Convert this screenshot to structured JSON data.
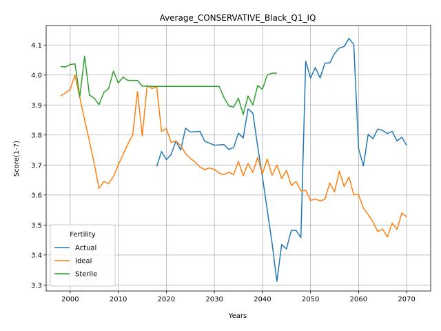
{
  "chart_data": {
    "type": "line",
    "title": "Average_CONSERVATIVE_Black_Q1_IQ",
    "xlabel": "Years",
    "ylabel": "Score(1-7)",
    "xlim": [
      1995,
      2075
    ],
    "ylim": [
      3.28,
      4.165
    ],
    "xticks": [
      2000,
      2010,
      2020,
      2030,
      2040,
      2050,
      2060,
      2070
    ],
    "yticks": [
      3.3,
      3.4,
      3.5,
      3.6,
      3.7,
      3.8,
      3.9,
      4.0,
      4.1
    ],
    "grid": true,
    "legend": {
      "title": "Fertility",
      "placement": "lower-left"
    },
    "series": [
      {
        "name": "Actual",
        "color": "#1f77b4",
        "x": [
          2018,
          2019,
          2020,
          2021,
          2022,
          2023,
          2024,
          2025,
          2026,
          2027,
          2028,
          2029,
          2030,
          2031,
          2032,
          2033,
          2034,
          2035,
          2036,
          2037,
          2038,
          2039,
          2040,
          2041,
          2042,
          2043,
          2044,
          2045,
          2046,
          2047,
          2048,
          2049,
          2050,
          2051,
          2052,
          2053,
          2054,
          2055,
          2056,
          2057,
          2058,
          2059,
          2060,
          2061,
          2062,
          2063,
          2064,
          2065,
          2066,
          2067,
          2068,
          2069,
          2070
        ],
        "y": [
          3.695,
          3.745,
          3.718,
          3.735,
          3.78,
          3.75,
          3.823,
          3.81,
          3.811,
          3.812,
          3.779,
          3.773,
          3.766,
          3.767,
          3.768,
          3.752,
          3.758,
          3.806,
          3.79,
          3.887,
          3.873,
          3.763,
          3.66,
          3.55,
          3.44,
          3.312,
          3.435,
          3.42,
          3.482,
          3.482,
          3.458,
          4.046,
          3.99,
          4.025,
          3.99,
          4.04,
          4.04,
          4.072,
          4.09,
          4.095,
          4.122,
          4.102,
          3.755,
          3.697,
          3.802,
          3.788,
          3.82,
          3.815,
          3.805,
          3.812,
          3.78,
          3.793,
          3.765
        ]
      },
      {
        "name": "Ideal",
        "color": "#ff7f0e",
        "x": [
          1998,
          1999,
          2000,
          2001,
          2002,
          2003,
          2004,
          2005,
          2006,
          2007,
          2008,
          2009,
          2010,
          2011,
          2012,
          2013,
          2014,
          2015,
          2016,
          2017,
          2018,
          2019,
          2020,
          2021,
          2022,
          2023,
          2024,
          2025,
          2026,
          2027,
          2028,
          2029,
          2030,
          2031,
          2032,
          2033,
          2034,
          2035,
          2036,
          2037,
          2038,
          2039,
          2040,
          2041,
          2042,
          2043,
          2044,
          2045,
          2046,
          2047,
          2048,
          2049,
          2050,
          2051,
          2052,
          2053,
          2054,
          2055,
          2056,
          2057,
          2058,
          2059,
          2060,
          2061,
          2062,
          2063,
          2064,
          2065,
          2066,
          2067,
          2068,
          2069,
          2070
        ],
        "y": [
          3.93,
          3.94,
          3.952,
          4.0,
          3.925,
          3.85,
          3.78,
          3.705,
          3.622,
          3.645,
          3.638,
          3.662,
          3.7,
          3.735,
          3.77,
          3.8,
          3.945,
          3.797,
          3.965,
          3.955,
          3.96,
          3.812,
          3.822,
          3.775,
          3.78,
          3.765,
          3.738,
          3.722,
          3.71,
          3.693,
          3.685,
          3.69,
          3.685,
          3.673,
          3.668,
          3.676,
          3.668,
          3.712,
          3.664,
          3.705,
          3.675,
          3.725,
          3.67,
          3.72,
          3.665,
          3.7,
          3.655,
          3.682,
          3.632,
          3.645,
          3.614,
          3.615,
          3.582,
          3.587,
          3.58,
          3.586,
          3.64,
          3.61,
          3.68,
          3.628,
          3.66,
          3.601,
          3.602,
          3.556,
          3.535,
          3.51,
          3.478,
          3.486,
          3.46,
          3.506,
          3.485,
          3.54,
          3.527
        ]
      },
      {
        "name": "Sterile",
        "color": "#2ca02c",
        "x": [
          1998,
          1999,
          2000,
          2001,
          2002,
          2003,
          2004,
          2005,
          2006,
          2007,
          2008,
          2009,
          2010,
          2011,
          2012,
          2013,
          2014,
          2015,
          2016,
          2017,
          2018,
          2019,
          2020,
          2021,
          2022,
          2023,
          2024,
          2025,
          2026,
          2027,
          2028,
          2029,
          2030,
          2031,
          2032,
          2033,
          2034,
          2035,
          2036,
          2037,
          2038,
          2039,
          2040,
          2041,
          2042,
          2043
        ],
        "y": [
          4.028,
          4.027,
          4.035,
          4.037,
          3.928,
          4.063,
          3.933,
          3.923,
          3.901,
          3.942,
          3.955,
          4.013,
          3.973,
          3.993,
          3.982,
          3.982,
          3.982,
          3.963,
          3.963,
          3.962,
          3.962,
          3.962,
          3.962,
          3.962,
          3.962,
          3.962,
          3.962,
          3.962,
          3.962,
          3.962,
          3.962,
          3.962,
          3.962,
          3.962,
          3.925,
          3.897,
          3.893,
          3.923,
          3.868,
          3.93,
          3.9,
          3.965,
          3.952,
          4.0,
          4.006,
          4.006
        ]
      }
    ]
  }
}
